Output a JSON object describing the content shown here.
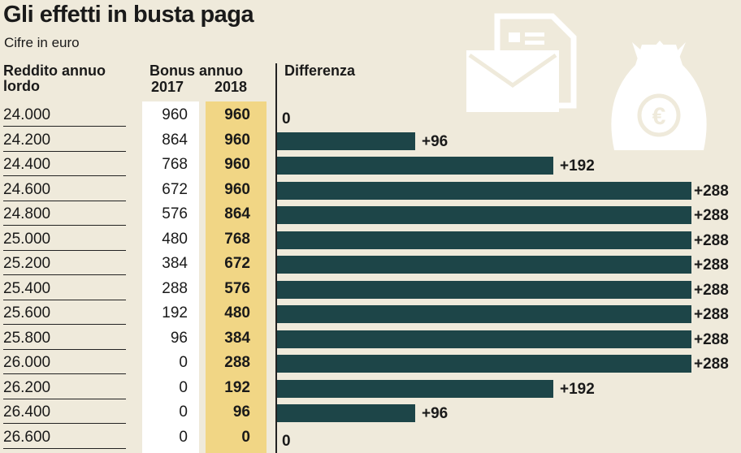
{
  "title": "Gli effetti in busta paga",
  "subtitle": "Cifre in euro",
  "headers": {
    "income_line1": "Reddito annuo",
    "income_line2": "lordo",
    "bonus": "Bonus annuo",
    "year_2017": "2017",
    "year_2018": "2018",
    "difference": "Differenza"
  },
  "colors": {
    "bar": "#1d4548",
    "bonus_2018_column": "#f1d685",
    "bonus_2017_column": "#ffffff",
    "background": "#efeadb"
  },
  "icons": [
    "envelope-document-icon",
    "euro-money-bag-icon"
  ],
  "chart_data": {
    "type": "bar",
    "categories": [
      "24.000",
      "24.200",
      "24.400",
      "24.600",
      "24.800",
      "25.000",
      "25.200",
      "25.400",
      "25.600",
      "25.800",
      "26.000",
      "26.200",
      "26.400",
      "26.600"
    ],
    "bonus_2017": [
      "960",
      "864",
      "768",
      "672",
      "576",
      "480",
      "384",
      "288",
      "192",
      "96",
      "0",
      "0",
      "0",
      "0"
    ],
    "bonus_2018": [
      "960",
      "960",
      "960",
      "960",
      "864",
      "768",
      "672",
      "576",
      "480",
      "384",
      "288",
      "192",
      "96",
      "0"
    ],
    "values": [
      0,
      96,
      192,
      288,
      288,
      288,
      288,
      288,
      288,
      288,
      288,
      192,
      96,
      0
    ],
    "labels": [
      "0",
      "+96",
      "+192",
      "+288",
      "+288",
      "+288",
      "+288",
      "+288",
      "+288",
      "+288",
      "+288",
      "+192",
      "+96",
      "0"
    ],
    "xlim": [
      0,
      288
    ]
  }
}
